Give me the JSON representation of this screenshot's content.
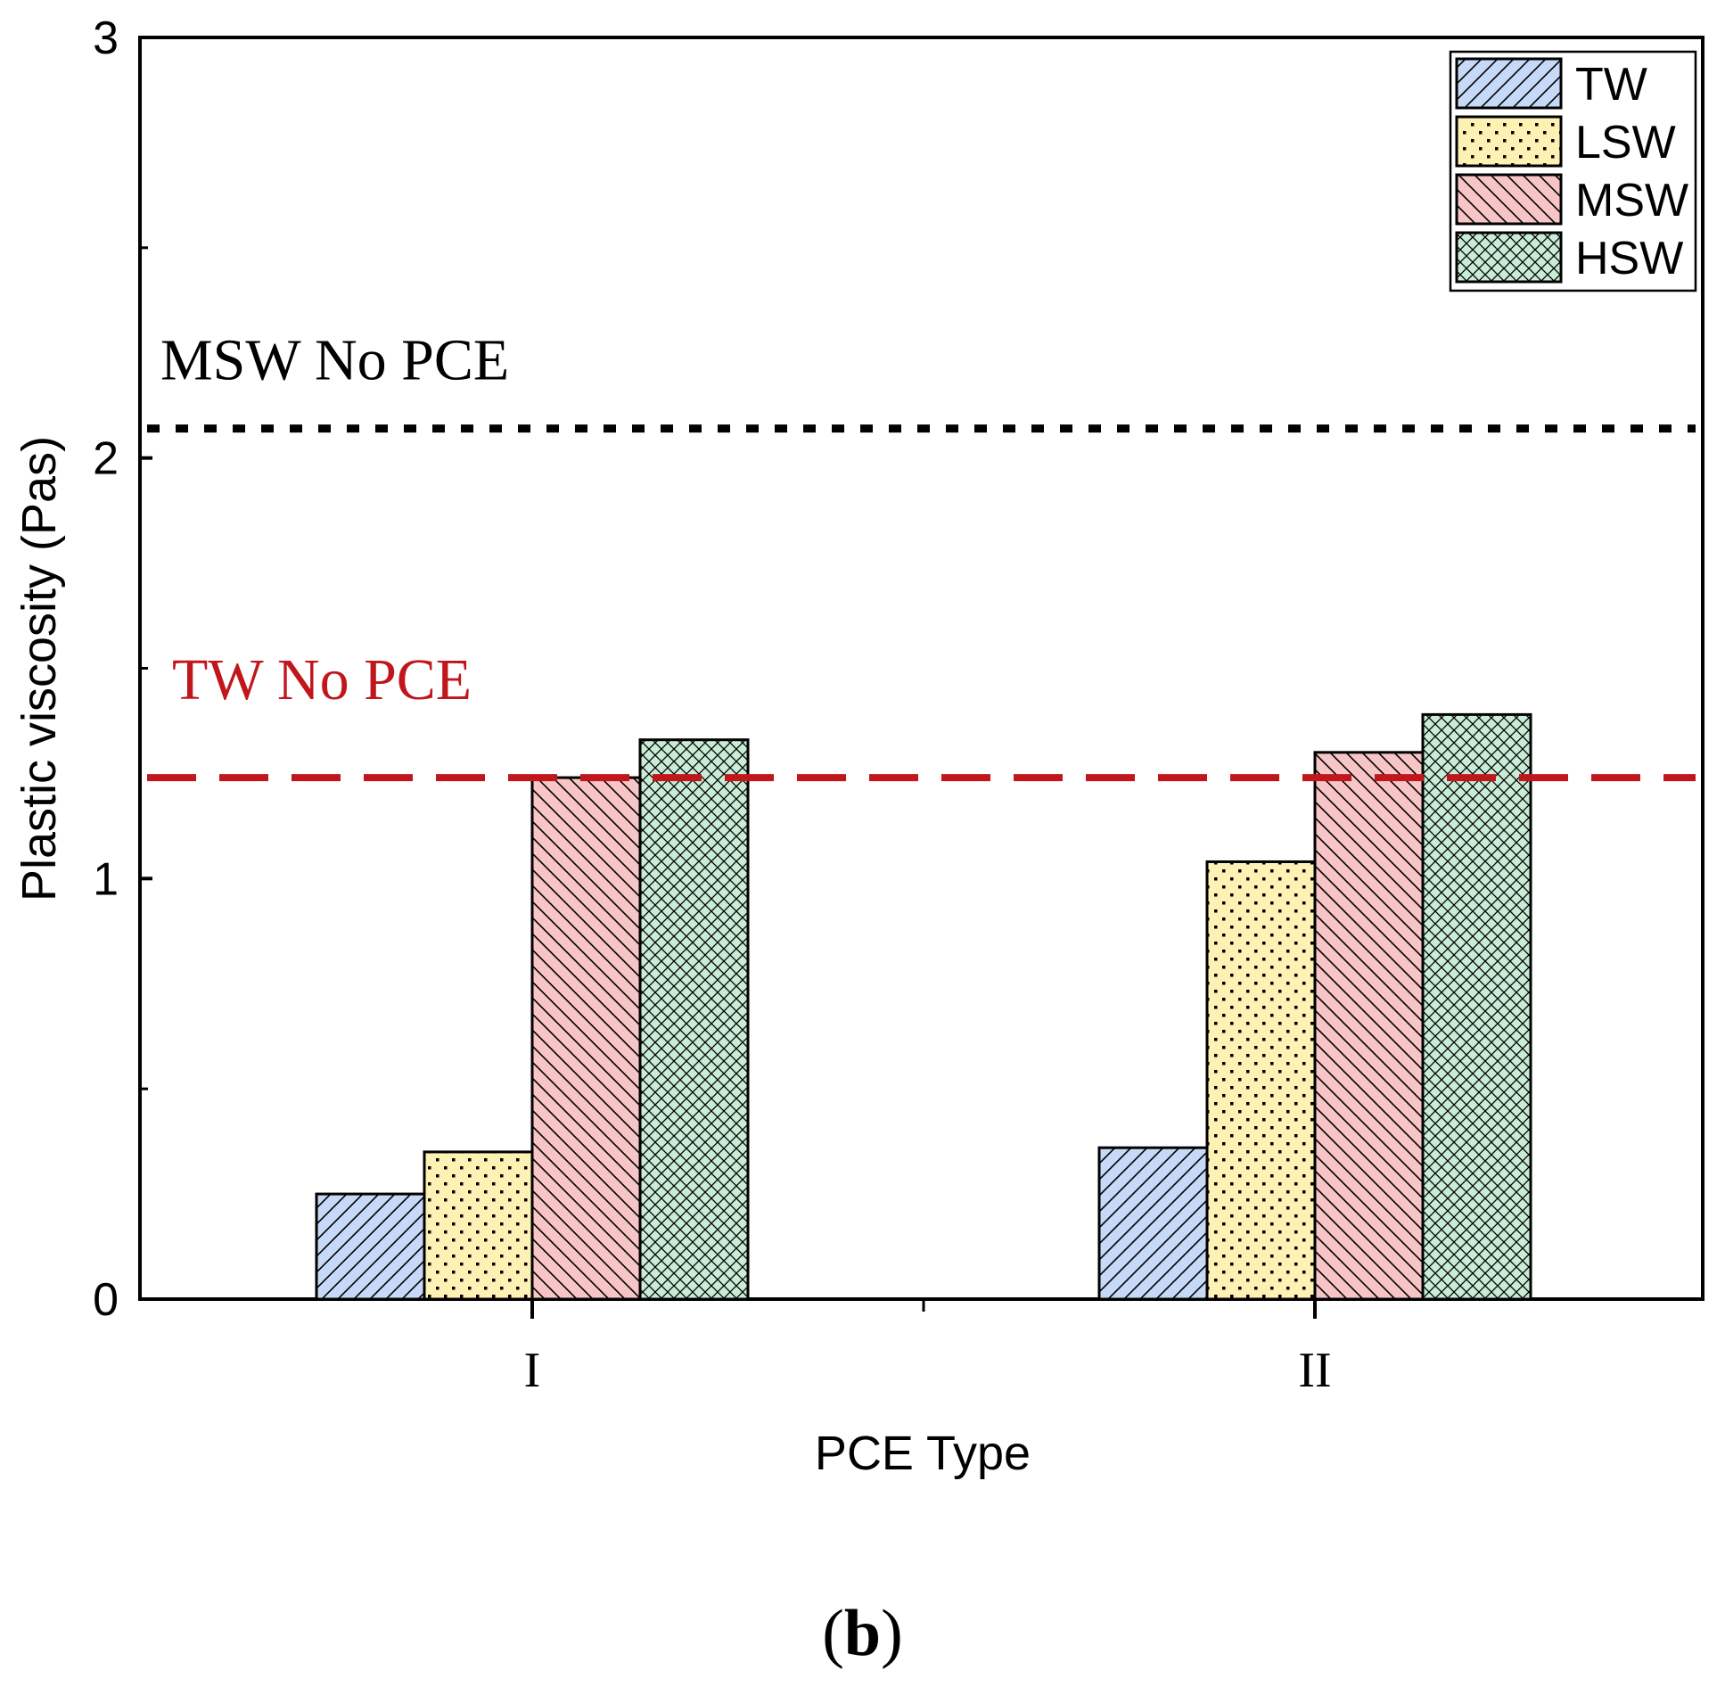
{
  "chart_data": {
    "type": "bar",
    "title": "",
    "xlabel": "PCE Type",
    "ylabel": "Plastic viscosity (Pas)",
    "categories": [
      "I",
      "II"
    ],
    "ylim": [
      0,
      3
    ],
    "yticks": [
      "0",
      "1",
      "2",
      "3"
    ],
    "series": [
      {
        "name": "TW",
        "values": [
          0.25,
          0.36
        ],
        "color": "#c6d9f7",
        "pattern": "diagonal-up"
      },
      {
        "name": "LSW",
        "values": [
          0.35,
          1.04
        ],
        "color": "#fdf1b3",
        "pattern": "dots"
      },
      {
        "name": "MSW",
        "values": [
          1.24,
          1.3
        ],
        "color": "#f8c5c6",
        "pattern": "diagonal-down"
      },
      {
        "name": "HSW",
        "values": [
          1.33,
          1.39
        ],
        "color": "#c9ecd6",
        "pattern": "crosshatch"
      }
    ],
    "reference_lines": [
      {
        "label": "MSW No PCE",
        "value": 2.07,
        "color": "#000000",
        "style": "dotted"
      },
      {
        "label": "TW No PCE",
        "value": 1.24,
        "color": "#c0161c",
        "style": "dashed"
      }
    ],
    "legend": "top-right",
    "panel_label": {
      "open": "(",
      "letter": "b",
      "close": ")"
    }
  }
}
